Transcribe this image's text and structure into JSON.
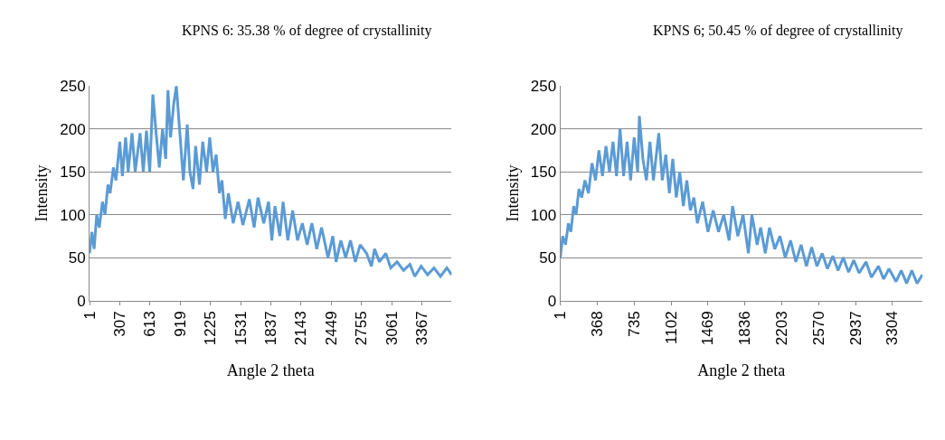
{
  "chart_data": [
    {
      "type": "line",
      "title": "KPNS 6: 35.38 % of degree of crystallinity",
      "xlabel": "Angle 2 theta",
      "ylabel": "Intensity",
      "grid": "y",
      "xlim": [
        1,
        3669
      ],
      "xticks": [
        1,
        307,
        613,
        919,
        1225,
        1531,
        1837,
        2143,
        2449,
        2755,
        3061,
        3367
      ],
      "ylim": [
        0,
        250
      ],
      "yticks": [
        0,
        50,
        100,
        150,
        200,
        250
      ],
      "series": [
        {
          "color": "#5b9bd5",
          "x": [
            1,
            24,
            47,
            73,
            99,
            131,
            157,
            187,
            209,
            242,
            268,
            307,
            333,
            366,
            392,
            431,
            463,
            512,
            545,
            577,
            610,
            642,
            675,
            707,
            740,
            772,
            795,
            821,
            854,
            880,
            912,
            951,
            990,
            1017,
            1049,
            1075,
            1114,
            1147,
            1186,
            1218,
            1251,
            1283,
            1316,
            1342,
            1375,
            1407,
            1456,
            1505,
            1554,
            1619,
            1668,
            1707,
            1765,
            1814,
            1847,
            1879,
            1928,
            1961,
            2009,
            2058,
            2107,
            2156,
            2205,
            2253,
            2302,
            2351,
            2416,
            2465,
            2498,
            2546,
            2595,
            2644,
            2693,
            2742,
            2807,
            2856,
            2888,
            2937,
            3002,
            3051,
            3116,
            3181,
            3246,
            3295,
            3360,
            3425,
            3490,
            3555,
            3620,
            3669
          ],
          "values": [
            55,
            80,
            60,
            100,
            85,
            115,
            100,
            135,
            125,
            155,
            140,
            185,
            145,
            190,
            150,
            195,
            150,
            195,
            150,
            198,
            150,
            240,
            195,
            155,
            200,
            165,
            245,
            190,
            230,
            250,
            200,
            140,
            205,
            150,
            130,
            180,
            135,
            185,
            150,
            190,
            150,
            170,
            125,
            140,
            95,
            125,
            90,
            115,
            88,
            118,
            85,
            120,
            90,
            115,
            70,
            110,
            75,
            115,
            70,
            105,
            70,
            90,
            65,
            90,
            60,
            85,
            50,
            75,
            45,
            70,
            50,
            70,
            45,
            65,
            55,
            40,
            60,
            45,
            55,
            38,
            45,
            35,
            42,
            28,
            40,
            30,
            38,
            28,
            38,
            30
          ]
        }
      ]
    },
    {
      "type": "line",
      "title": "KPNS 6; 50.45 % of degree of crystallinity",
      "xlabel": "Angle 2 theta",
      "ylabel": "Intensity",
      "grid": "y",
      "xlim": [
        1,
        3601
      ],
      "xticks": [
        1,
        368,
        735,
        1102,
        1469,
        1836,
        2203,
        2570,
        2937,
        3304
      ],
      "ylim": [
        0,
        250
      ],
      "yticks": [
        0,
        50,
        100,
        150,
        200,
        250
      ],
      "series": [
        {
          "color": "#5b9bd5",
          "x": [
            1,
            25,
            53,
            81,
            106,
            134,
            158,
            186,
            214,
            246,
            281,
            316,
            351,
            385,
            420,
            455,
            490,
            525,
            560,
            595,
            630,
            665,
            700,
            735,
            770,
            787,
            822,
            857,
            892,
            927,
            980,
            1015,
            1050,
            1085,
            1119,
            1154,
            1189,
            1224,
            1259,
            1294,
            1329,
            1364,
            1416,
            1469,
            1521,
            1574,
            1626,
            1679,
            1714,
            1766,
            1818,
            1871,
            1906,
            1958,
            1993,
            2039,
            2081,
            2133,
            2185,
            2238,
            2290,
            2343,
            2395,
            2448,
            2500,
            2552,
            2605,
            2657,
            2710,
            2762,
            2814,
            2867,
            2919,
            2972,
            3041,
            3094,
            3164,
            3216,
            3269,
            3339,
            3391,
            3444,
            3496,
            3548,
            3601
          ],
          "values": [
            50,
            75,
            65,
            90,
            80,
            110,
            100,
            130,
            120,
            140,
            125,
            160,
            140,
            175,
            145,
            180,
            150,
            185,
            145,
            200,
            145,
            185,
            140,
            190,
            150,
            215,
            165,
            140,
            185,
            140,
            195,
            140,
            170,
            125,
            165,
            120,
            150,
            110,
            140,
            105,
            120,
            90,
            115,
            80,
            105,
            80,
            100,
            70,
            110,
            75,
            100,
            55,
            100,
            65,
            85,
            55,
            85,
            60,
            75,
            50,
            70,
            45,
            65,
            40,
            62,
            40,
            55,
            37,
            52,
            35,
            50,
            33,
            47,
            32,
            45,
            27,
            40,
            25,
            37,
            22,
            35,
            20,
            35,
            20,
            30
          ]
        }
      ]
    }
  ]
}
